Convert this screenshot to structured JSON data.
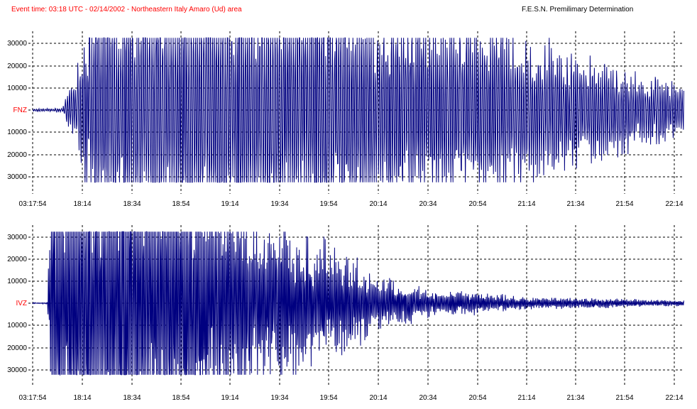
{
  "header": {
    "event_title": "Event time: 03:18 UTC - 02/14/2002 - Northeastern Italy Amaro (Ud) area",
    "source_note": "F.E.S.N. Premilimary Determination"
  },
  "colors": {
    "trace": "#000080",
    "channel_label": "#ff0000",
    "grid": "#000000",
    "text": "#000000",
    "background": "#ffffff"
  },
  "chart_data": [
    {
      "type": "line",
      "channel": "FNZ",
      "ylim": [
        -33000,
        33000
      ],
      "clip": 32500,
      "y_ticks": [
        "30000",
        "20000",
        "10000",
        "FNZ",
        "10000",
        "20000",
        "30000"
      ],
      "x_ticks": [
        "03:17:54",
        "18:14",
        "18:34",
        "18:54",
        "19:14",
        "19:34",
        "19:54",
        "20:14",
        "20:34",
        "20:54",
        "21:14",
        "21:34",
        "21:54",
        "22:14"
      ],
      "onset": "18:14",
      "envelope": [
        {
          "t": "03:17:54",
          "amp": 600
        },
        {
          "t": "18:10",
          "amp": 800
        },
        {
          "t": "18:14",
          "amp": 26000
        },
        {
          "t": "18:20",
          "amp": 60000
        },
        {
          "t": "19:34",
          "amp": 55000
        },
        {
          "t": "20:14",
          "amp": 45000
        },
        {
          "t": "20:54",
          "amp": 40000
        },
        {
          "t": "21:14",
          "amp": 30000
        },
        {
          "t": "21:34",
          "amp": 24000
        },
        {
          "t": "21:54",
          "amp": 18000
        },
        {
          "t": "22:14",
          "amp": 12000
        }
      ],
      "grid": true
    },
    {
      "type": "line",
      "channel": "IVZ",
      "ylim": [
        -33000,
        33000
      ],
      "clip": 32500,
      "y_ticks": [
        "30000",
        "20000",
        "10000",
        "IVZ",
        "10000",
        "20000",
        "30000"
      ],
      "x_ticks": [
        "03:17:54",
        "18:14",
        "18:34",
        "18:54",
        "19:14",
        "19:34",
        "19:54",
        "20:14",
        "20:34",
        "20:54",
        "21:14",
        "21:34",
        "21:54",
        "22:14"
      ],
      "onset": "18:08",
      "envelope": [
        {
          "t": "03:17:54",
          "amp": 300
        },
        {
          "t": "18:07",
          "amp": 300
        },
        {
          "t": "18:08",
          "amp": 80000
        },
        {
          "t": "18:54",
          "amp": 75000
        },
        {
          "t": "19:14",
          "amp": 45000
        },
        {
          "t": "19:34",
          "amp": 30000
        },
        {
          "t": "19:54",
          "amp": 25000
        },
        {
          "t": "20:14",
          "amp": 12000
        },
        {
          "t": "20:34",
          "amp": 6000
        },
        {
          "t": "20:54",
          "amp": 5000
        },
        {
          "t": "21:14",
          "amp": 2500
        },
        {
          "t": "21:54",
          "amp": 1800
        },
        {
          "t": "22:14",
          "amp": 1200
        }
      ],
      "grid": true
    }
  ]
}
